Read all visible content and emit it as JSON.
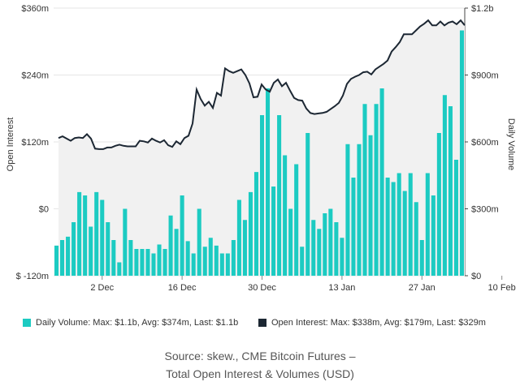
{
  "chart_data": {
    "type": "bar+line",
    "xlabel": "",
    "ylabel_left": "Open Interest",
    "ylabel_right": "Daily Volume",
    "ylim_left": [
      -120,
      360
    ],
    "ylim_right": [
      0,
      1200
    ],
    "left_ticks": [
      "$360m",
      "$240m",
      "$120m",
      "$0",
      "$ -120m"
    ],
    "left_tick_values": [
      360,
      240,
      120,
      0,
      -120
    ],
    "right_ticks": [
      "$1.2b",
      "$900m",
      "$600m",
      "$300m",
      "$0"
    ],
    "right_tick_values": [
      1200,
      900,
      600,
      300,
      0
    ],
    "x_tick_labels": [
      "2 Dec",
      "16 Dec",
      "30 Dec",
      "13 Jan",
      "27 Jan",
      "10 Feb"
    ],
    "x_tick_index": [
      8,
      22,
      36,
      50,
      64,
      78
    ],
    "grid": true,
    "colors": {
      "volume": "#1ccbc2",
      "open_interest": "#1c2733",
      "grid": "#e6e6e6",
      "area": "#f1f1f1"
    },
    "series": [
      {
        "name": "Daily Volume",
        "axis": "right",
        "type": "bar",
        "values": [
          135,
          160,
          175,
          240,
          375,
          360,
          220,
          375,
          340,
          240,
          160,
          60,
          300,
          160,
          120,
          120,
          120,
          100,
          140,
          120,
          270,
          210,
          360,
          155,
          100,
          300,
          130,
          170,
          135,
          100,
          100,
          160,
          340,
          250,
          375,
          465,
          720,
          840,
          400,
          720,
          540,
          300,
          500,
          130,
          640,
          250,
          210,
          280,
          300,
          240,
          170,
          590,
          440,
          590,
          770,
          630,
          770,
          840,
          440,
          420,
          460,
          380,
          460,
          330,
          160,
          460,
          360,
          640,
          810,
          760,
          520,
          1100
        ]
      },
      {
        "name": "Open Interest",
        "axis": "left",
        "type": "line",
        "values": [
          127,
          130,
          126,
          122,
          127,
          128,
          127,
          134,
          126,
          108,
          107,
          107,
          110,
          110,
          113,
          115,
          113,
          112,
          112,
          112,
          122,
          121,
          119,
          126,
          122,
          119,
          123,
          114,
          111,
          121,
          116,
          127,
          131,
          153,
          214,
          197,
          185,
          192,
          181,
          208,
          203,
          252,
          247,
          244,
          247,
          250,
          240,
          225,
          200,
          201,
          223,
          214,
          210,
          226,
          232,
          220,
          226,
          212,
          199,
          195,
          194,
          180,
          172,
          170,
          171,
          172,
          174,
          179,
          184,
          190,
          203,
          224,
          233,
          237,
          240,
          245,
          246,
          241,
          250,
          255,
          260,
          266,
          282,
          290,
          299,
          313,
          313,
          313,
          320,
          327,
          332,
          338,
          329,
          329,
          336,
          329,
          334,
          336,
          331,
          338,
          329
        ]
      }
    ]
  },
  "legend": {
    "volume_label": "Daily Volume: Max: $1.1b, Avg: $374m, Last: $1.1b",
    "oi_label": "Open Interest: Max: $338m, Avg: $179m, Last: $329m"
  },
  "caption": {
    "line1": "Source: skew., CME Bitcoin Futures –",
    "line2": "Total Open Interest & Volumes (USD)"
  }
}
